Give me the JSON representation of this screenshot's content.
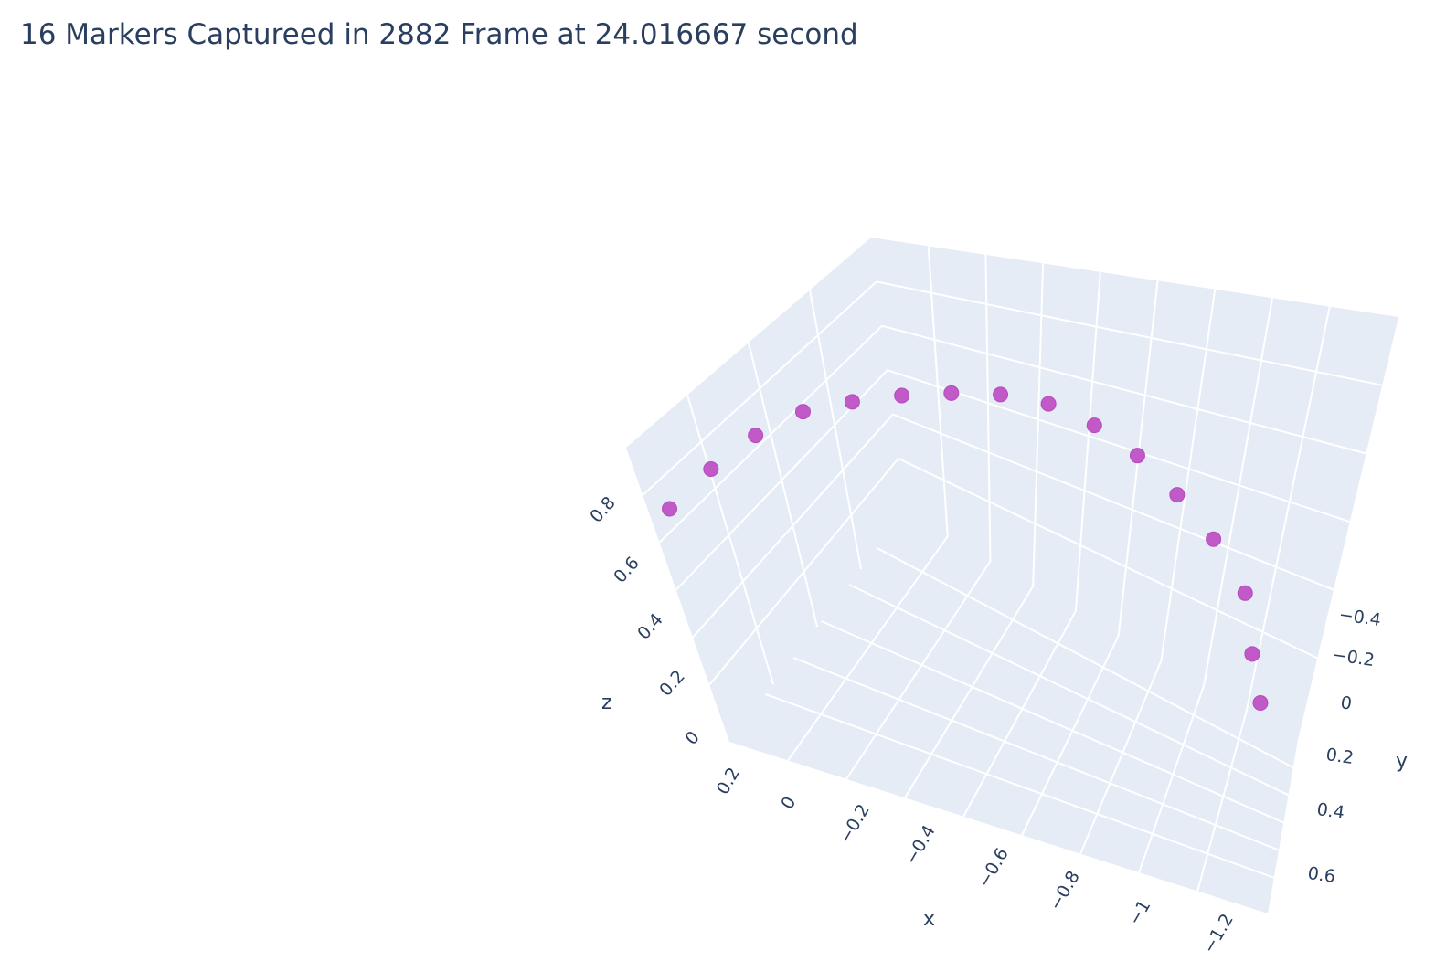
{
  "title": "16 Markers Captureed in 2882 Frame at 24.016667 second",
  "colors": {
    "pane": "#e5ecf6",
    "grid": "#ffffff",
    "marker": "#c159c8",
    "text": "#2a3f5f"
  },
  "chart_data": {
    "type": "scatter",
    "dimensions": 3,
    "axes": {
      "x": {
        "label": "x",
        "range": [
          0.3,
          -1.3
        ],
        "ticks": [
          "0.2",
          "0",
          "−0.2",
          "−0.4",
          "−0.6",
          "−0.8",
          "−1",
          "−1.2"
        ]
      },
      "y": {
        "label": "y",
        "range": [
          -0.5,
          0.7
        ],
        "ticks": [
          "−0.4",
          "−0.2",
          "0",
          "0.2",
          "0.4",
          "0.6"
        ]
      },
      "z": {
        "label": "z",
        "range": [
          -0.05,
          0.9
        ],
        "ticks": [
          "0",
          "0.2",
          "0.4",
          "0.6",
          "0.8"
        ]
      }
    },
    "grid": true,
    "points": [
      {
        "x": 0.2,
        "y": 0.05,
        "z": 0.65
      },
      {
        "x": 0.1,
        "y": 0.05,
        "z": 0.75
      },
      {
        "x": 0.0,
        "y": 0.05,
        "z": 0.83
      },
      {
        "x": -0.1,
        "y": 0.05,
        "z": 0.88
      },
      {
        "x": -0.2,
        "y": 0.05,
        "z": 0.89
      },
      {
        "x": -0.3,
        "y": 0.05,
        "z": 0.89
      },
      {
        "x": -0.4,
        "y": 0.05,
        "z": 0.88
      },
      {
        "x": -0.5,
        "y": 0.05,
        "z": 0.86
      },
      {
        "x": -0.6,
        "y": 0.05,
        "z": 0.82
      },
      {
        "x": -0.7,
        "y": 0.05,
        "z": 0.75
      },
      {
        "x": -0.8,
        "y": 0.05,
        "z": 0.66
      },
      {
        "x": -0.9,
        "y": 0.05,
        "z": 0.55
      },
      {
        "x": -1.0,
        "y": 0.05,
        "z": 0.43
      },
      {
        "x": -1.1,
        "y": 0.05,
        "z": 0.29
      },
      {
        "x": -1.15,
        "y": 0.05,
        "z": 0.14
      },
      {
        "x": -1.2,
        "y": 0.05,
        "z": 0.02
      }
    ]
  }
}
